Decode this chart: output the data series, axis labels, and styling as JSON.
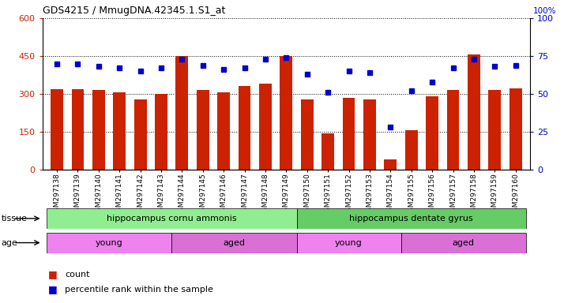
{
  "title": "GDS4215 / MmugDNA.42345.1.S1_at",
  "samples": [
    "GSM297138",
    "GSM297139",
    "GSM297140",
    "GSM297141",
    "GSM297142",
    "GSM297143",
    "GSM297144",
    "GSM297145",
    "GSM297146",
    "GSM297147",
    "GSM297148",
    "GSM297149",
    "GSM297150",
    "GSM297151",
    "GSM297152",
    "GSM297153",
    "GSM297154",
    "GSM297155",
    "GSM297156",
    "GSM297157",
    "GSM297158",
    "GSM297159",
    "GSM297160"
  ],
  "counts": [
    320,
    320,
    315,
    305,
    278,
    300,
    450,
    315,
    305,
    330,
    340,
    450,
    278,
    145,
    285,
    278,
    40,
    155,
    292,
    315,
    455,
    315,
    322
  ],
  "percentiles": [
    70,
    70,
    68,
    67,
    65,
    67,
    73,
    69,
    66,
    67,
    73,
    74,
    63,
    51,
    65,
    64,
    28,
    52,
    58,
    67,
    73,
    68,
    69
  ],
  "bar_color": "#cc2200",
  "dot_color": "#0000cc",
  "ylim_left": [
    0,
    600
  ],
  "ylim_right": [
    0,
    100
  ],
  "yticks_left": [
    0,
    150,
    300,
    450,
    600
  ],
  "yticks_right": [
    0,
    25,
    50,
    75,
    100
  ],
  "tissue_groups": [
    {
      "label": "hippocampus cornu ammonis",
      "start": 0,
      "end": 12,
      "color": "#90ee90"
    },
    {
      "label": "hippocampus dentate gyrus",
      "start": 12,
      "end": 23,
      "color": "#66cc66"
    }
  ],
  "age_groups": [
    {
      "label": "young",
      "start": 0,
      "end": 6,
      "color": "#ee82ee"
    },
    {
      "label": "aged",
      "start": 6,
      "end": 12,
      "color": "#da70d6"
    },
    {
      "label": "young",
      "start": 12,
      "end": 17,
      "color": "#ee82ee"
    },
    {
      "label": "aged",
      "start": 17,
      "end": 23,
      "color": "#da70d6"
    }
  ],
  "legend_count_label": "count",
  "legend_pct_label": "percentile rank within the sample",
  "bg_color": "#d8d8d8",
  "plot_bg": "#ffffff"
}
